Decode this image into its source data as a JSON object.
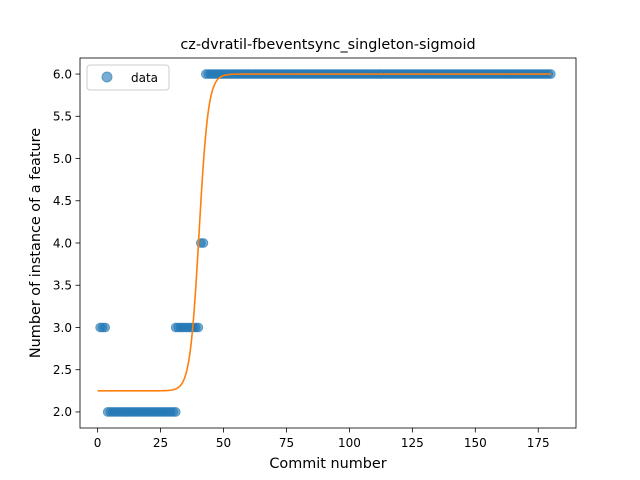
{
  "chart_data": {
    "type": "scatter",
    "title": "cz-dvratil-fbeventsync_singleton-sigmoid",
    "xlabel": "Commit number",
    "ylabel": "Number of instance of a feature",
    "xlim": [
      -7,
      190
    ],
    "ylim": [
      1.81,
      6.19
    ],
    "xticks": [
      0,
      25,
      50,
      75,
      100,
      125,
      150,
      175
    ],
    "yticks": [
      2.0,
      2.5,
      3.0,
      3.5,
      4.0,
      4.5,
      5.0,
      5.5,
      6.0
    ],
    "ytick_labels": [
      "2.0",
      "2.5",
      "3.0",
      "3.5",
      "4.0",
      "4.5",
      "5.0",
      "5.5",
      "6.0"
    ],
    "legend": {
      "placement": "top-left",
      "entries": [
        "data"
      ]
    },
    "grid": false,
    "series": [
      {
        "name": "data",
        "kind": "points",
        "color": "#1f77b4",
        "segments": [
          {
            "y": 3,
            "x_from": 1,
            "x_to": 3
          },
          {
            "y": 2,
            "x_from": 4,
            "x_to": 31
          },
          {
            "y": 3,
            "x_from": 31,
            "x_to": 40
          },
          {
            "y": 4,
            "x_from": 41,
            "x_to": 42
          },
          {
            "y": 6,
            "x_from": 43,
            "x_to": 180
          }
        ]
      },
      {
        "kind": "sigmoid-fit",
        "color": "#ff7f0e",
        "low": 2.25,
        "high": 6.0,
        "midpoint": 40.3,
        "slope": 0.55,
        "x_from": 0,
        "x_to": 180
      }
    ]
  }
}
